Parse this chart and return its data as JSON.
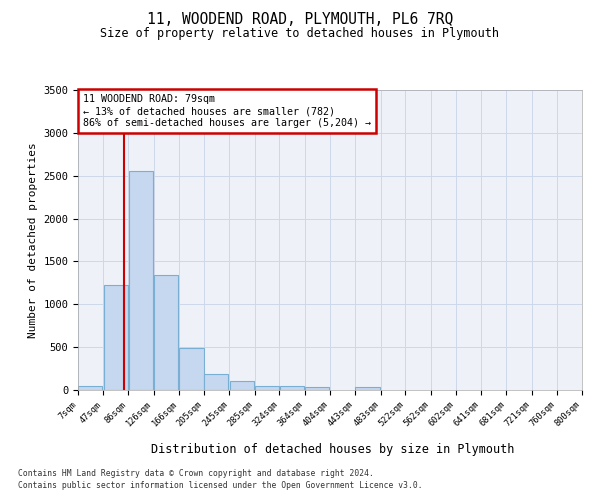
{
  "title": "11, WOODEND ROAD, PLYMOUTH, PL6 7RQ",
  "subtitle": "Size of property relative to detached houses in Plymouth",
  "xlabel": "Distribution of detached houses by size in Plymouth",
  "ylabel": "Number of detached properties",
  "bar_color": "#c5d8ef",
  "bar_edge_color": "#7aafd4",
  "grid_color": "#ccd8ea",
  "background_color": "#eef2f8",
  "bins_left": [
    7,
    47,
    86,
    126,
    166,
    205,
    245,
    285,
    324,
    364,
    404,
    443,
    483,
    522,
    562,
    602,
    641,
    681,
    721,
    760
  ],
  "bin_width": 39,
  "bar_heights": [
    47,
    1230,
    2560,
    1340,
    490,
    185,
    105,
    50,
    50,
    35,
    0,
    35,
    0,
    0,
    0,
    0,
    0,
    0,
    0,
    0
  ],
  "xtick_labels": [
    "7sqm",
    "47sqm",
    "86sqm",
    "126sqm",
    "166sqm",
    "205sqm",
    "245sqm",
    "285sqm",
    "324sqm",
    "364sqm",
    "404sqm",
    "443sqm",
    "483sqm",
    "522sqm",
    "562sqm",
    "602sqm",
    "641sqm",
    "681sqm",
    "721sqm",
    "760sqm",
    "800sqm"
  ],
  "xtick_positions": [
    7,
    47,
    86,
    126,
    166,
    205,
    245,
    285,
    324,
    364,
    404,
    443,
    483,
    522,
    562,
    602,
    641,
    681,
    721,
    760,
    800
  ],
  "ylim": [
    0,
    3500
  ],
  "xlim": [
    7,
    800
  ],
  "property_size": 79,
  "red_line_color": "#cc0000",
  "annotation_text": "11 WOODEND ROAD: 79sqm\n← 13% of detached houses are smaller (782)\n86% of semi-detached houses are larger (5,204) →",
  "annotation_box_color": "#cc0000",
  "footer_line1": "Contains HM Land Registry data © Crown copyright and database right 2024.",
  "footer_line2": "Contains public sector information licensed under the Open Government Licence v3.0.",
  "ytick_values": [
    0,
    500,
    1000,
    1500,
    2000,
    2500,
    3000,
    3500
  ]
}
